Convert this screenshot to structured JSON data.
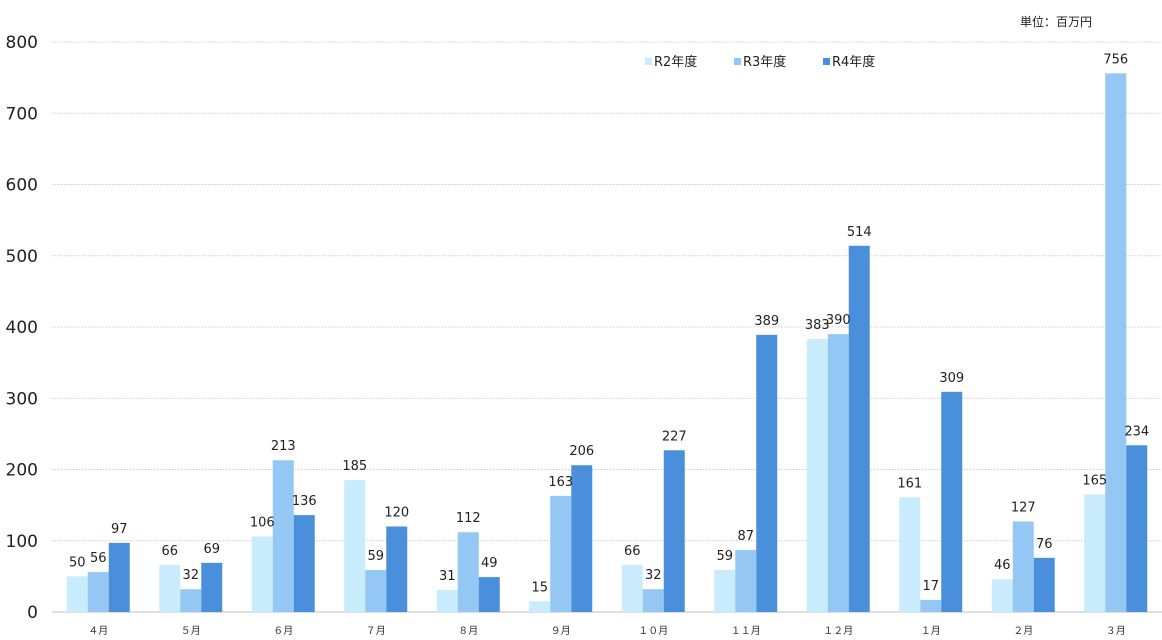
{
  "unit_label": "単位：百万円",
  "colors": {
    "R2年度": "#c8ecfb",
    "R3年度": "#94c7f3",
    "R4年度": "#4a8fdc",
    "grid": "#cccccc",
    "axis": "#bfbfbf"
  },
  "chart_data": {
    "type": "bar",
    "title": "",
    "xlabel": "",
    "ylabel": "",
    "ylim": [
      0,
      800
    ],
    "yticks": [
      0,
      100,
      200,
      300,
      400,
      500,
      600,
      700,
      800
    ],
    "grid": true,
    "legend_position": "top-right",
    "categories": [
      "４月",
      "５月",
      "６月",
      "７月",
      "８月",
      "９月",
      "１０月",
      "１１月",
      "１２月",
      "１月",
      "２月",
      "３月"
    ],
    "series": [
      {
        "name": "R2年度",
        "values": [
          50,
          66,
          106,
          185,
          31,
          15,
          66,
          59,
          383,
          161,
          46,
          165
        ]
      },
      {
        "name": "R3年度",
        "values": [
          56,
          32,
          213,
          59,
          112,
          163,
          32,
          87,
          390,
          17,
          127,
          756
        ]
      },
      {
        "name": "R4年度",
        "values": [
          97,
          69,
          136,
          120,
          49,
          206,
          227,
          389,
          514,
          309,
          76,
          234
        ]
      }
    ]
  }
}
